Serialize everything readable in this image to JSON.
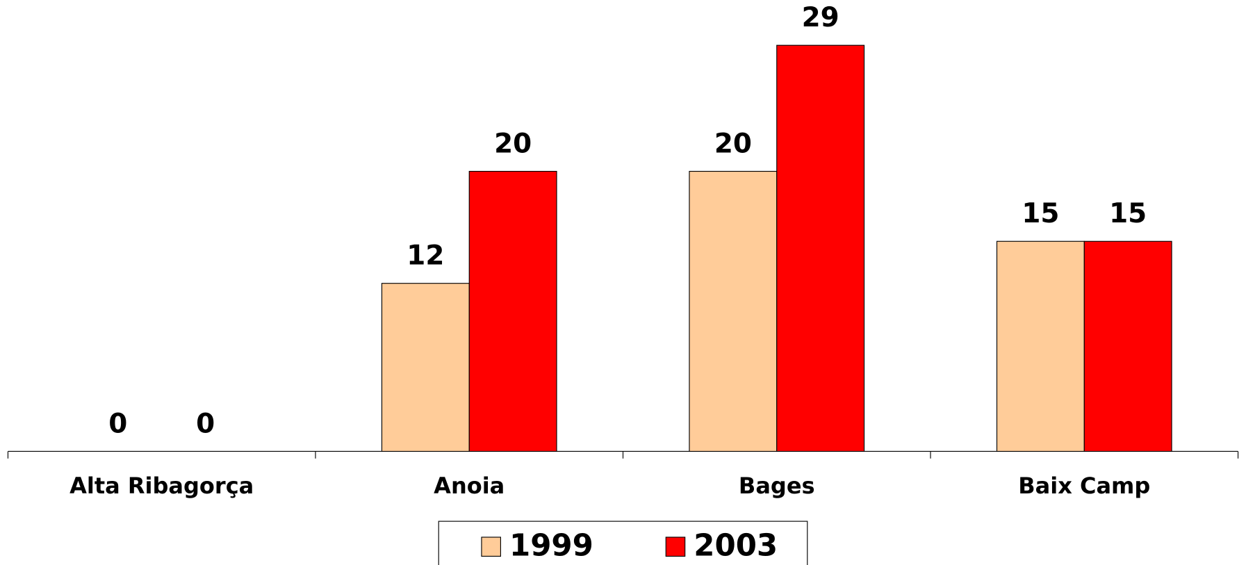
{
  "chart_data": {
    "type": "bar",
    "categories": [
      "Alta Ribagorça",
      "Anoia",
      "Bages",
      "Baix Camp"
    ],
    "series": [
      {
        "name": "1999",
        "color": "#ffcc99",
        "values": [
          0,
          12,
          20,
          15
        ]
      },
      {
        "name": "2003",
        "color": "#ff0000",
        "values": [
          0,
          20,
          29,
          15
        ]
      }
    ],
    "legend": "bottom"
  }
}
